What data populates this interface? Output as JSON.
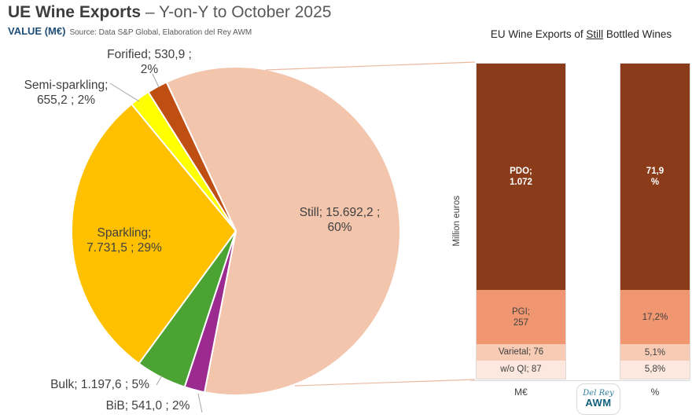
{
  "header": {
    "title_bold": "UE Wine Exports",
    "title_rest": " – Y-on-Y to October 2025",
    "value_label": "VALUE (M€)",
    "source": "Source: Data S&P Global, Elaboration del Rey AWM"
  },
  "right_chart": {
    "title_pre": "EU Wine Exports of ",
    "title_underlined": "Still",
    "title_post": " Bottled Wines",
    "ylabel": "Million euros",
    "x_categories": [
      "M€",
      "%"
    ]
  },
  "logo": {
    "line1": "Del Rey",
    "line2": "AWM"
  },
  "chart_data": [
    {
      "type": "pie",
      "title": "UE Wine Exports – Y-on-Y to October 2025",
      "unit": "M€",
      "start_angle_deg": -25,
      "slices": [
        {
          "label": "Still",
          "value": 15692.2,
          "pct": 60,
          "color": "#F2C5AC",
          "display": "Still; 15.692,2 ;\n60%"
        },
        {
          "label": "BiB",
          "value": 541.0,
          "pct": 2,
          "color": "#9C2B90",
          "display": "BiB; 541,0 ; 2%"
        },
        {
          "label": "Bulk",
          "value": 1197.6,
          "pct": 5,
          "color": "#4AA333",
          "display": "Bulk; 1.197,6 ; 5%"
        },
        {
          "label": "Sparkling",
          "value": 7731.5,
          "pct": 29,
          "color": "#FFC000",
          "display": "Sparkling;\n7.731,5 ; 29%"
        },
        {
          "label": "Semi-sparkling",
          "value": 655.2,
          "pct": 2,
          "color": "#FFFF00",
          "display": "Semi-sparkling;\n655,2 ; 2%"
        },
        {
          "label": "Forified",
          "value": 530.9,
          "pct": 2,
          "color": "#BF4E12",
          "display": "Forified; 530,9 ;\n2%"
        }
      ]
    },
    {
      "type": "stacked-bar",
      "title": "EU Wine Exports of Still Bottled Wines",
      "ylabel": "Million euros",
      "categories": [
        "M€",
        "%"
      ],
      "segments": [
        {
          "label": "PDO",
          "value": 1072,
          "pct": 71.9,
          "color": "#8A3C1A",
          "text_color": "#FFFFFF",
          "display_meur": "PDO;\n1.072",
          "display_pct": "71,9\n%"
        },
        {
          "label": "PGI",
          "value": 257,
          "pct": 17.2,
          "color": "#F09670",
          "text_color": "#404040",
          "display_meur": "PGI;\n257",
          "display_pct": "17,2%"
        },
        {
          "label": "Varietal",
          "value": 76,
          "pct": 5.1,
          "color": "#F8CBB4",
          "text_color": "#404040",
          "display_meur": "Varietal; 76",
          "display_pct": "5,1%"
        },
        {
          "label": "w/o QI",
          "value": 87,
          "pct": 5.8,
          "color": "#FCE8DE",
          "text_color": "#404040",
          "display_meur": "w/o QI; 87",
          "display_pct": "5,8%"
        }
      ]
    }
  ]
}
